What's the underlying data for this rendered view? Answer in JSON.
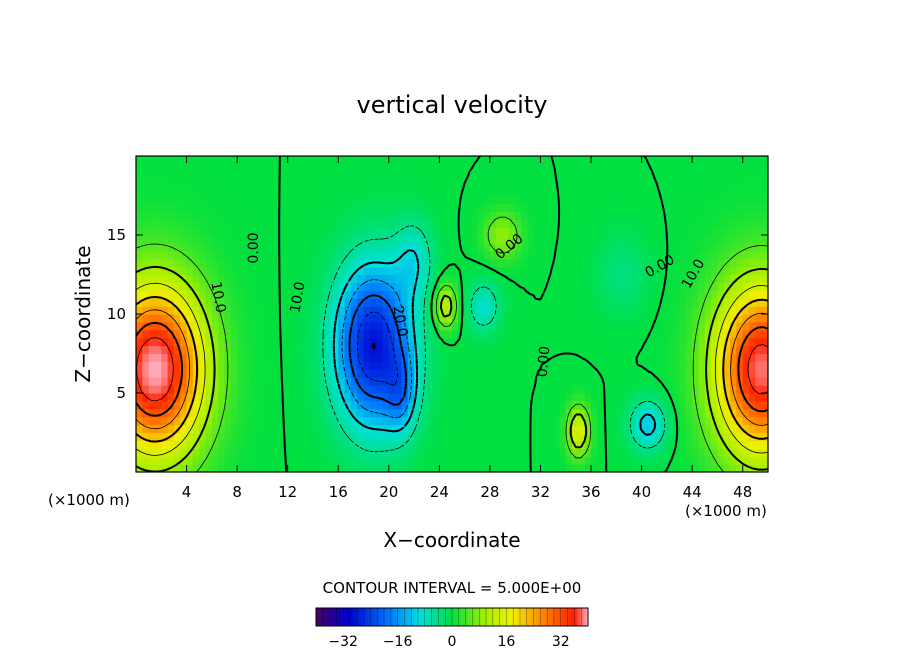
{
  "chart_data": {
    "type": "heatmap",
    "title": "vertical velocity",
    "xlabel": "X−coordinate",
    "ylabel": "Z−coordinate",
    "x_unit_left": "(×1000 m)",
    "x_unit_right": "(×1000 m)",
    "xlim": [
      0,
      50
    ],
    "ylim": [
      0,
      20
    ],
    "x_ticks": [
      4,
      8,
      12,
      16,
      20,
      24,
      28,
      32,
      36,
      40,
      44,
      48
    ],
    "y_ticks": [
      5,
      10,
      15
    ],
    "contour_interval_text": "CONTOUR INTERVAL = 5.000E+00",
    "contour_labels": [
      "10.0",
      "0.00",
      "10.0",
      "20.0",
      "0.00",
      "0.00",
      "0.00",
      "10.0"
    ],
    "colorbar": {
      "min": -40,
      "max": 40,
      "ticks": [
        -32,
        -16,
        0,
        16,
        32
      ]
    },
    "features": [
      {
        "x": 1.5,
        "z": 6.5,
        "amp": 40,
        "sx": 4.0,
        "sz": 5.5
      },
      {
        "x": 49.5,
        "z": 6.5,
        "amp": 38,
        "sx": 3.8,
        "sz": 5.5
      },
      {
        "x": 18.8,
        "z": 8.0,
        "amp": -30,
        "sx": 3.0,
        "sz": 5.0
      },
      {
        "x": 21.0,
        "z": 5.0,
        "amp": -10,
        "sx": 1.2,
        "sz": 2.5
      },
      {
        "x": 22.0,
        "z": 13.5,
        "amp": -8,
        "sx": 1.5,
        "sz": 2.5
      },
      {
        "x": 24.5,
        "z": 10.5,
        "amp": 14,
        "sx": 0.9,
        "sz": 1.4
      },
      {
        "x": 27.5,
        "z": 10.5,
        "amp": -9,
        "sx": 1.3,
        "sz": 1.6
      },
      {
        "x": 29.0,
        "z": 15.0,
        "amp": 9,
        "sx": 1.5,
        "sz": 1.5
      },
      {
        "x": 35.0,
        "z": 2.6,
        "amp": 16,
        "sx": 0.9,
        "sz": 1.6
      },
      {
        "x": 40.5,
        "z": 3.0,
        "amp": -12,
        "sx": 1.5,
        "sz": 1.6
      },
      {
        "x": 38.5,
        "z": 12.5,
        "amp": -4,
        "sx": 2.0,
        "sz": 2.5
      }
    ]
  }
}
